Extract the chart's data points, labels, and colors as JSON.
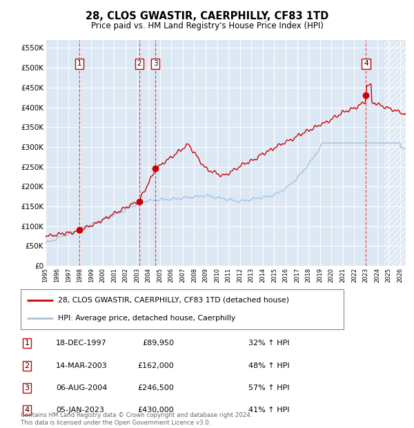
{
  "title": "28, CLOS GWASTIR, CAERPHILLY, CF83 1TD",
  "subtitle": "Price paid vs. HM Land Registry's House Price Index (HPI)",
  "footer": "Contains HM Land Registry data © Crown copyright and database right 2024.\nThis data is licensed under the Open Government Licence v3.0.",
  "legend_line1": "28, CLOS GWASTIR, CAERPHILLY, CF83 1TD (detached house)",
  "legend_line2": "HPI: Average price, detached house, Caerphilly",
  "sales": [
    {
      "num": 1,
      "date_label": "18-DEC-1997",
      "price_label": "£89,950",
      "hpi_label": "32% ↑ HPI",
      "year": 1997.96,
      "price": 89950
    },
    {
      "num": 2,
      "date_label": "14-MAR-2003",
      "price_label": "£162,000",
      "hpi_label": "48% ↑ HPI",
      "year": 2003.2,
      "price": 162000
    },
    {
      "num": 3,
      "date_label": "06-AUG-2004",
      "price_label": "£246,500",
      "hpi_label": "57% ↑ HPI",
      "year": 2004.6,
      "price": 246500
    },
    {
      "num": 4,
      "date_label": "05-JAN-2023",
      "price_label": "£430,000",
      "hpi_label": "41% ↑ HPI",
      "year": 2023.02,
      "price": 430000
    }
  ],
  "hpi_color": "#a8c4de",
  "price_color": "#cc0000",
  "plot_bg_color": "#dde8f5",
  "ylim": [
    0,
    570000
  ],
  "xlim_start": 1995.0,
  "xlim_end": 2026.5,
  "hatch_start": 2024.5,
  "yticks": [
    0,
    50000,
    100000,
    150000,
    200000,
    250000,
    300000,
    350000,
    400000,
    450000,
    500000,
    550000
  ],
  "ytick_labels": [
    "£0",
    "£50K",
    "£100K",
    "£150K",
    "£200K",
    "£250K",
    "£300K",
    "£350K",
    "£400K",
    "£450K",
    "£500K",
    "£550K"
  ],
  "xtick_years": [
    1995,
    1996,
    1997,
    1998,
    1999,
    2000,
    2001,
    2002,
    2003,
    2004,
    2005,
    2006,
    2007,
    2008,
    2009,
    2010,
    2011,
    2012,
    2013,
    2014,
    2015,
    2016,
    2017,
    2018,
    2019,
    2020,
    2021,
    2022,
    2023,
    2024,
    2025,
    2026
  ]
}
